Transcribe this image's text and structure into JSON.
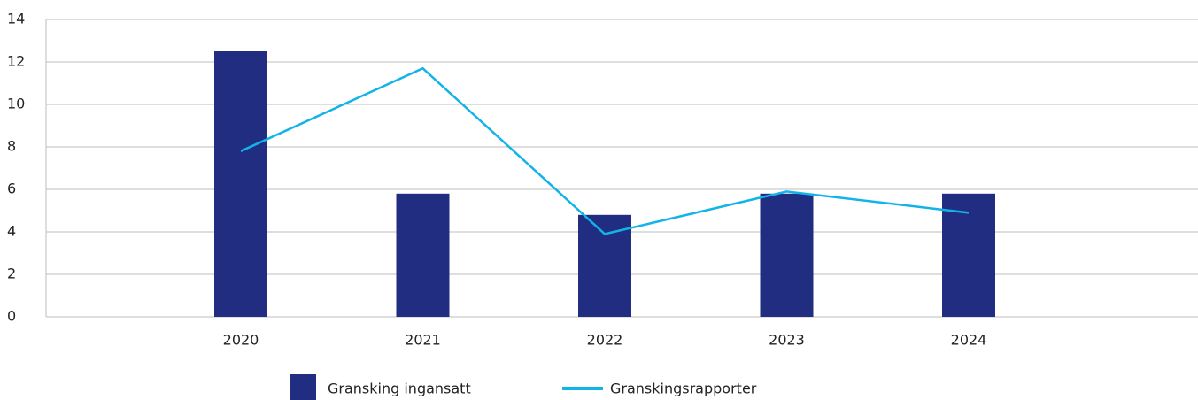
{
  "chart_data": {
    "type": "bar_line",
    "categories": [
      "2020",
      "2021",
      "2022",
      "2023",
      "2024"
    ],
    "series": [
      {
        "name": "Gransking ingansatt",
        "type": "bar",
        "color": "#212d80",
        "values": [
          12.5,
          5.8,
          4.8,
          5.8,
          5.8
        ]
      },
      {
        "name": "Granskingsrapporter",
        "type": "line",
        "color": "#12b4e8",
        "values": [
          7.8,
          11.7,
          3.9,
          5.9,
          4.9
        ]
      }
    ],
    "ylim": [
      0,
      14
    ],
    "yticks": [
      0,
      2,
      4,
      6,
      8,
      10,
      12,
      14
    ],
    "grid": true,
    "legend": "bottom"
  }
}
